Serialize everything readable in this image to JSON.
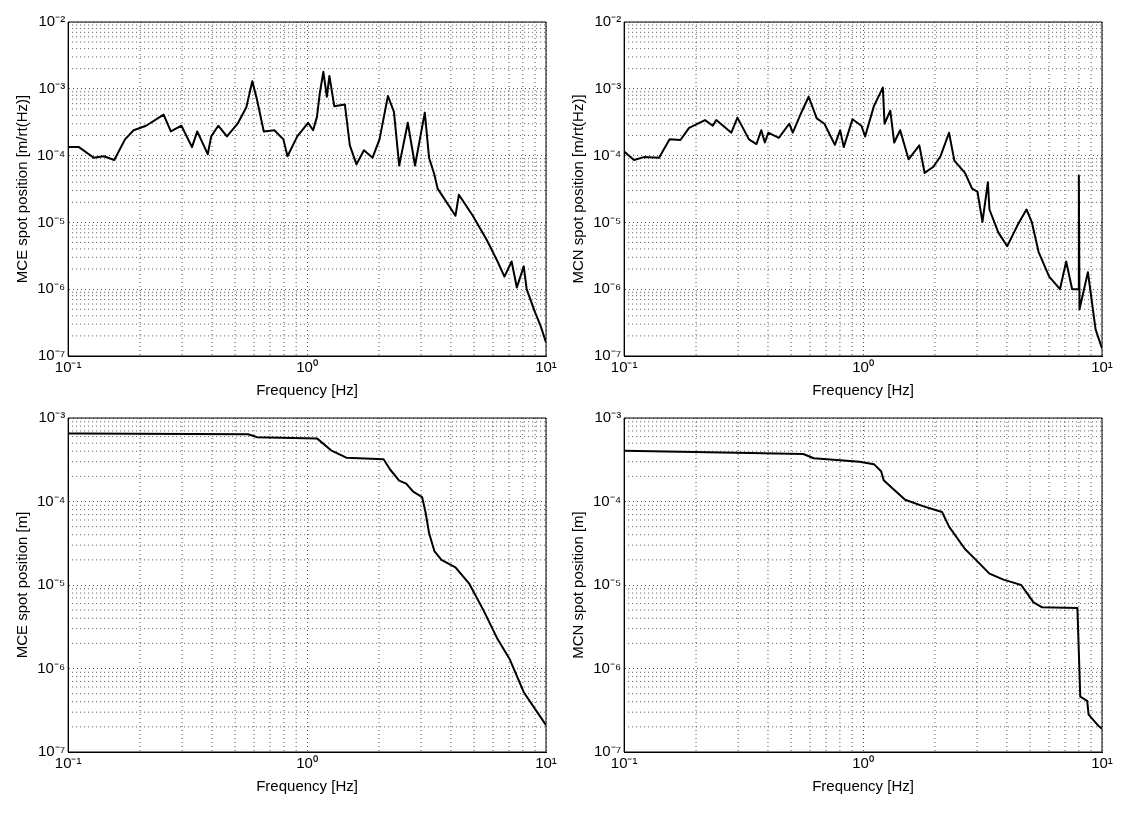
{
  "chart_data": [
    {
      "type": "line",
      "color": "#000000",
      "xlabel": "Frequency [Hz]",
      "ylabel": "MCE spot position [m/rt(Hz)]",
      "log": "xy",
      "grid": true,
      "xlim": [
        0.1,
        10
      ],
      "ylim": [
        1e-07,
        0.01
      ],
      "xticks": [
        {
          "value": 0.1,
          "label": "10⁻¹"
        },
        {
          "value": 1,
          "label": "10⁰"
        },
        {
          "value": 10,
          "label": "10¹"
        }
      ],
      "yticks": [
        {
          "value": 1e-07,
          "label": "10⁻⁷"
        },
        {
          "value": 1e-06,
          "label": "10⁻⁶"
        },
        {
          "value": 1e-05,
          "label": "10⁻⁵"
        },
        {
          "value": 0.0001,
          "label": "10⁻⁴"
        },
        {
          "value": 0.001,
          "label": "10⁻³"
        },
        {
          "value": 0.01,
          "label": "10⁻²"
        }
      ],
      "x": [
        0.1,
        0.111,
        0.128,
        0.141,
        0.156,
        0.173,
        0.188,
        0.212,
        0.251,
        0.269,
        0.298,
        0.33,
        0.347,
        0.384,
        0.397,
        0.425,
        0.462,
        0.512,
        0.557,
        0.59,
        0.617,
        0.659,
        0.73,
        0.796,
        0.828,
        0.91,
        1.01,
        1.06,
        1.1,
        1.13,
        1.17,
        1.21,
        1.24,
        1.3,
        1.44,
        1.51,
        1.61,
        1.73,
        1.88,
        2.01,
        2.18,
        2.31,
        2.43,
        2.64,
        2.83,
        3.11,
        3.24,
        3.41,
        3.52,
        4.18,
        4.32,
        4.94,
        5.66,
        6.27,
        6.7,
        7.18,
        7.55,
        8.07,
        8.3,
        9.0,
        9.5,
        10
      ],
      "values": [
        0.000134,
        0.000134,
        9.3e-05,
        9.8e-05,
        8.6e-05,
        0.000175,
        0.00024,
        0.00028,
        0.00041,
        0.00023,
        0.00028,
        0.000134,
        0.00023,
        0.000105,
        0.000194,
        0.00028,
        0.000194,
        0.0003,
        0.00053,
        0.0013,
        0.00069,
        0.00023,
        0.00024,
        0.000175,
        9.8e-05,
        0.000194,
        0.00031,
        0.00024,
        0.00038,
        0.00085,
        0.0018,
        0.00076,
        0.00156,
        0.00055,
        0.00058,
        0.000142,
        7.4e-05,
        0.00012,
        9.3e-05,
        0.000175,
        0.00078,
        0.00045,
        7.1e-05,
        0.00031,
        7.1e-05,
        0.00044,
        9.3e-05,
        5.2e-05,
        3.2e-05,
        1.26e-05,
        2.6e-05,
        1.26e-05,
        5.4e-06,
        2.6e-06,
        1.54e-06,
        2.6e-06,
        1.06e-06,
        2.2e-06,
        1e-06,
        4.5e-07,
        2.8e-07,
        1.6e-07
      ]
    },
    {
      "type": "line",
      "color": "#000000",
      "xlabel": "Frequency [Hz]",
      "ylabel": "MCN spot position [m/rt(Hz)]",
      "log": "xy",
      "grid": true,
      "xlim": [
        0.1,
        10
      ],
      "ylim": [
        1e-07,
        0.01
      ],
      "xticks": [
        {
          "value": 0.1,
          "label": "10⁻¹"
        },
        {
          "value": 1,
          "label": "10⁰"
        },
        {
          "value": 10,
          "label": "10¹"
        }
      ],
      "yticks": [
        {
          "value": 1e-07,
          "label": "10⁻⁷"
        },
        {
          "value": 1e-06,
          "label": "10⁻⁶"
        },
        {
          "value": 1e-05,
          "label": "10⁻⁵"
        },
        {
          "value": 0.0001,
          "label": "10⁻⁴"
        },
        {
          "value": 0.001,
          "label": "10⁻³"
        },
        {
          "value": 0.01,
          "label": "10⁻²"
        }
      ],
      "x": [
        0.1,
        0.11,
        0.121,
        0.14,
        0.155,
        0.172,
        0.187,
        0.218,
        0.235,
        0.243,
        0.281,
        0.298,
        0.333,
        0.358,
        0.375,
        0.388,
        0.401,
        0.444,
        0.491,
        0.508,
        0.553,
        0.592,
        0.64,
        0.689,
        0.762,
        0.802,
        0.83,
        0.903,
        0.984,
        1.02,
        1.11,
        1.21,
        1.23,
        1.3,
        1.35,
        1.43,
        1.55,
        1.72,
        1.81,
        1.97,
        2.11,
        2.29,
        2.41,
        2.67,
        2.86,
        3.01,
        3.16,
        3.33,
        3.38,
        3.68,
        4.01,
        4.44,
        4.83,
        5.08,
        5.43,
        6.01,
        6.67,
        7.08,
        7.5,
        7.95,
        8.0,
        8.05,
        8.73,
        9.4,
        10
      ],
      "values": [
        0.000115,
        8.6e-05,
        9.5e-05,
        9.3e-05,
        0.000175,
        0.000171,
        0.00026,
        0.00034,
        0.00028,
        0.00034,
        0.00022,
        0.00037,
        0.000175,
        0.000149,
        0.00024,
        0.000157,
        0.00022,
        0.000184,
        0.0003,
        0.00022,
        0.00045,
        0.00076,
        0.00036,
        0.0003,
        0.000145,
        0.00024,
        0.000134,
        0.00035,
        0.00028,
        0.000194,
        0.00055,
        0.00104,
        0.0003,
        0.00047,
        0.000157,
        0.00024,
        8.8e-05,
        0.000142,
        5.5e-05,
        6.8e-05,
        9.8e-05,
        0.00022,
        8.4e-05,
        5.5e-05,
        3.2e-05,
        2.9e-05,
        1.02e-05,
        4e-05,
        1.56e-05,
        7.1e-06,
        4.4e-06,
        9.2e-06,
        1.56e-05,
        1.02e-05,
        3.6e-06,
        1.54e-06,
        1e-06,
        2.6e-06,
        1e-06,
        1e-06,
        5e-05,
        5e-07,
        1.8e-06,
        2.5e-07,
        1.3e-07
      ]
    },
    {
      "type": "line",
      "color": "#000000",
      "xlabel": "Frequency [Hz]",
      "ylabel": "MCE spot position [m]",
      "log": "xy",
      "grid": true,
      "xlim": [
        0.1,
        10
      ],
      "ylim": [
        1e-07,
        0.001
      ],
      "xticks": [
        {
          "value": 0.1,
          "label": "10⁻¹"
        },
        {
          "value": 1,
          "label": "10⁰"
        },
        {
          "value": 10,
          "label": "10¹"
        }
      ],
      "yticks": [
        {
          "value": 1e-07,
          "label": "10⁻⁷"
        },
        {
          "value": 1e-06,
          "label": "10⁻⁶"
        },
        {
          "value": 1e-05,
          "label": "10⁻⁵"
        },
        {
          "value": 0.0001,
          "label": "10⁻⁴"
        },
        {
          "value": 0.001,
          "label": "10⁻³"
        }
      ],
      "x": [
        0.1,
        0.111,
        0.566,
        0.617,
        1.1,
        1.26,
        1.46,
        2.09,
        2.23,
        2.43,
        2.6,
        2.78,
        3.03,
        3.13,
        3.24,
        3.41,
        3.65,
        4.18,
        4.78,
        5.47,
        6.27,
        7.06,
        8.07,
        10
      ],
      "values": [
        0.00065,
        0.00065,
        0.00064,
        0.00059,
        0.00057,
        0.00041,
        0.000335,
        0.00032,
        0.00024,
        0.000178,
        0.000164,
        0.000131,
        0.000113,
        7.5e-05,
        4.2e-05,
        2.55e-05,
        2e-05,
        1.63e-05,
        1.03e-05,
        5e-06,
        2.25e-06,
        1.28e-06,
        5.2e-07,
        2.1e-07
      ]
    },
    {
      "type": "line",
      "color": "#000000",
      "xlabel": "Frequency [Hz]",
      "ylabel": "MCN spot position [m]",
      "log": "xy",
      "grid": true,
      "xlim": [
        0.1,
        10
      ],
      "ylim": [
        1e-07,
        0.001
      ],
      "xticks": [
        {
          "value": 0.1,
          "label": "10⁻¹"
        },
        {
          "value": 1,
          "label": "10⁰"
        },
        {
          "value": 10,
          "label": "10¹"
        }
      ],
      "yticks": [
        {
          "value": 1e-07,
          "label": "10⁻⁷"
        },
        {
          "value": 1e-06,
          "label": "10⁻⁶"
        },
        {
          "value": 1e-05,
          "label": "10⁻⁵"
        },
        {
          "value": 0.0001,
          "label": "10⁻⁴"
        },
        {
          "value": 0.001,
          "label": "10⁻³"
        }
      ],
      "x": [
        0.1,
        0.562,
        0.622,
        0.966,
        1.11,
        1.19,
        1.22,
        1.33,
        1.5,
        1.78,
        2.14,
        2.29,
        2.67,
        3.01,
        3.38,
        3.87,
        4.59,
        5.17,
        5.62,
        7.89,
        8.11,
        8.67,
        8.79,
        9.66,
        10
      ],
      "values": [
        0.000405,
        0.00037,
        0.00033,
        0.0003,
        0.00028,
        0.00023,
        0.00018,
        0.000143,
        0.000105,
        8.8e-05,
        7.5e-05,
        5e-05,
        2.7e-05,
        1.92e-05,
        1.37e-05,
        1.16e-05,
        1e-05,
        6.2e-06,
        5.4e-06,
        5.3e-06,
        4.6e-07,
        4.1e-07,
        2.8e-07,
        2.06e-07,
        1.9e-07
      ]
    }
  ]
}
